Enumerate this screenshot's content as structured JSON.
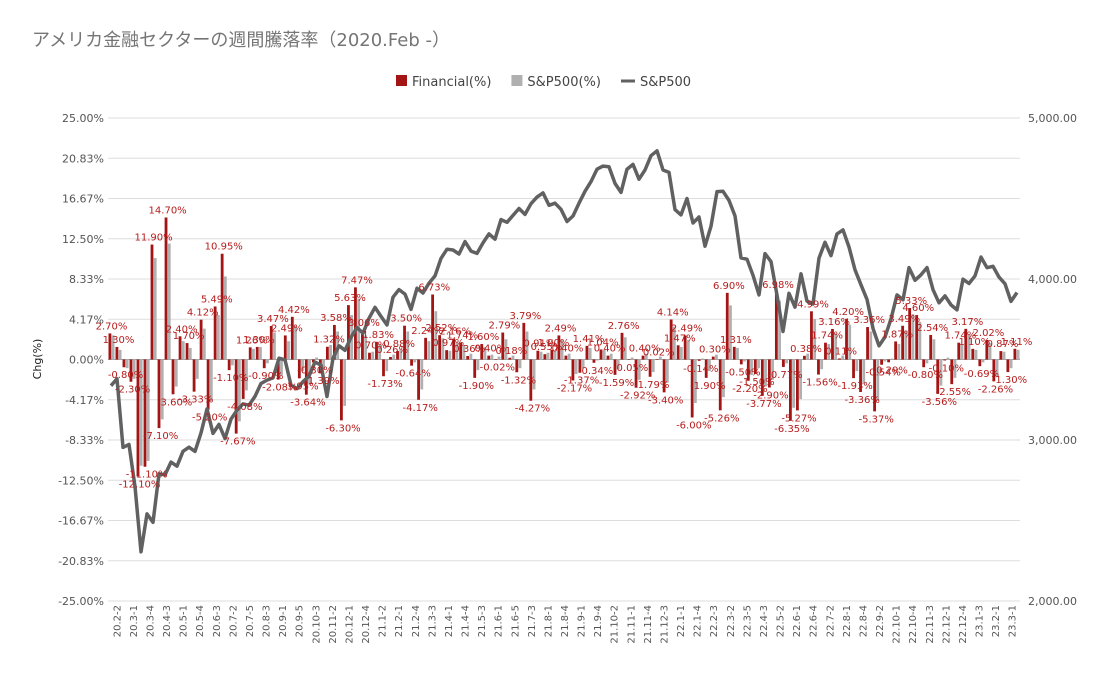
{
  "chart_data": {
    "type": "bar",
    "title": "アメリカ金融セクターの週間騰落率（2020.Feb -）",
    "ylabel": "Chg(%)",
    "ylim_left": [
      -25,
      25
    ],
    "ylim_right": [
      2000,
      5000
    ],
    "left_ticks": [
      "25.00%",
      "20.83%",
      "16.67%",
      "12.50%",
      "8.33%",
      "4.17%",
      "0.00%",
      "-4.17%",
      "-8.33%",
      "-12.50%",
      "-16.67%",
      "-20.83%",
      "-25.00%"
    ],
    "right_ticks": [
      "5,000.00",
      "4,000.00",
      "3,000.00",
      "2,000.00"
    ],
    "legend": {
      "position": "top",
      "items": [
        {
          "name": "Financial(%)",
          "color": "#a31515",
          "shape": "square"
        },
        {
          "name": "S&P500(%)",
          "color": "#b0b0b0",
          "shape": "square"
        },
        {
          "name": "S&P500",
          "color": "#616161",
          "shape": "line"
        }
      ]
    },
    "categories": [
      "20.2-2",
      "20.3-1",
      "20.3-4",
      "20.4-3",
      "20.5-1",
      "20.5-4",
      "20.6-3",
      "20.7-2",
      "20.7-5",
      "20.8-3",
      "20.9-1",
      "20.9-5",
      "20.10-3",
      "20.11-2",
      "20.12-1",
      "20.12-4",
      "21.1-2",
      "21.2-1",
      "21.2-4",
      "21.3-3",
      "21.4-1",
      "21.4-4",
      "21.5-3",
      "21.6-1",
      "21.6-5",
      "21.7-3",
      "21.8-1",
      "21.8-4",
      "21.9-1",
      "21.9-4",
      "21.10-2",
      "21.11-1",
      "21.11-4",
      "21.12-3",
      "22.1-1",
      "22.1-4",
      "22.2-3",
      "22.3-2",
      "22.3-5",
      "22.4-3",
      "22.5-2",
      "22.6-1",
      "22.6-4",
      "22.7-2",
      "22.8-1",
      "22.8-4",
      "22.9-2",
      "22.10-1",
      "22.10-4",
      "22.11-3",
      "22.12-1",
      "22.12-4",
      "23.1-3",
      "23.2-1",
      "23.3-1"
    ],
    "financial": [
      2.7,
      1.3,
      -0.8,
      -2.3,
      -12.1,
      -11.1,
      11.9,
      -7.1,
      14.7,
      -3.6,
      2.4,
      1.7,
      -3.33,
      4.12,
      -5.2,
      5.49,
      10.95,
      -1.1,
      -7.67,
      -4.08,
      1.26,
      1.3,
      -0.9,
      3.47,
      -2.08,
      2.49,
      4.42,
      -1.95,
      -3.64,
      -0.3,
      -1.39,
      1.32,
      3.58,
      -6.3,
      5.63,
      7.47,
      3.06,
      0.7,
      1.83,
      -1.73,
      0.26,
      0.88,
      3.5,
      -0.64,
      -4.17,
      2.24,
      6.73,
      2.52,
      0.97,
      2.16,
      1.74,
      0.36,
      -1.9,
      1.6,
      0.4,
      -0.02,
      2.79,
      0.18,
      -1.32,
      3.79,
      -4.27,
      0.91,
      0.55,
      1.0,
      2.49,
      0.4,
      -2.17,
      -1.37,
      1.41,
      -0.34,
      1.04,
      0.4,
      -1.59,
      2.76,
      -0.05,
      -2.92,
      0.4,
      -1.79,
      0.02,
      -3.4,
      4.14,
      1.47,
      2.49,
      -6.0,
      -0.14,
      -1.9,
      0.3,
      -5.26,
      6.9,
      1.31,
      -0.5,
      -2.2,
      -1.5,
      -3.77,
      -2.9,
      6.98,
      -0.77,
      -6.35,
      -5.27,
      0.38,
      4.99,
      -1.56,
      1.74,
      3.16,
      0.11,
      4.2,
      -1.93,
      -3.36,
      3.36,
      -5.37,
      -0.54,
      -0.29,
      1.87,
      3.49,
      5.33,
      4.6,
      -0.8,
      2.54,
      -3.56,
      -0.1,
      -2.55,
      1.74,
      3.17,
      1.1,
      -0.69,
      2.02,
      -2.26,
      0.87,
      -1.3,
      1.11
    ],
    "financial_labels": [
      "2.70%",
      "1.30%",
      "-0.80%",
      "-2.30%",
      "-12.10%",
      "-11.10%",
      "11.90%",
      "-7.10%",
      "14.70%",
      "-3.60%",
      "2.40%",
      "1.70%",
      "-3.33%",
      "4.12%",
      "-5.20%",
      "5.49%",
      "10.95%",
      "-1.10%",
      "-7.67%",
      "-4.08%",
      "1.26%",
      "1.30%",
      "-0.90%",
      "3.47%",
      "-2.08%",
      "2.49%",
      "4.42%",
      "-1.95%",
      "-3.64%",
      "-0.30%",
      "-1.39%",
      "1.32%",
      "3.58%",
      "-6.30%",
      "5.63%",
      "7.47%",
      "3.06%",
      "0.70%",
      "1.83%",
      "-1.73%",
      "0.26%",
      "0.88%",
      "3.50%",
      "-0.64%",
      "-4.17%",
      "2.24%",
      "6.73%",
      "2.52%",
      "0.97%",
      "2.16%",
      "1.74%",
      "0.36%",
      "-1.90%",
      "1.60%",
      "0.40%",
      "-0.02%",
      "2.79%",
      "0.18%",
      "-1.32%",
      "3.79%",
      "-4.27%",
      "0.91%",
      "0.55%",
      "1.00%",
      "2.49%",
      "0.40%",
      "-2.17%",
      "-1.37%",
      "1.41%",
      "-0.34%",
      "1.04%",
      "0.40%",
      "-1.59%",
      "2.76%",
      "-0.05%",
      "-2.92%",
      "0.40%",
      "-1.79%",
      "0.02%",
      "-3.40%",
      "4.14%",
      "1.47%",
      "2.49%",
      "-6.00%",
      "-0.14%",
      "-1.90%",
      "0.30%",
      "-5.26%",
      "6.90%",
      "1.31%",
      "-0.50%",
      "-2.20%",
      "-1.50%",
      "-3.77%",
      "-2.90%",
      "6.98%",
      "-0.77%",
      "-6.35%",
      "-5.27%",
      "0.38%",
      "4.99%",
      "-1.56%",
      "1.74%",
      "3.16%",
      "0.11%",
      "4.20%",
      "-1.93%",
      "-3.36%",
      "3.36%",
      "-5.37%",
      "-0.54%",
      "-0.29%",
      "1.87%",
      "3.49%",
      "5.33%",
      "4.60%",
      "-0.80%",
      "2.54%",
      "-3.56%",
      "-0.10%",
      "-2.55%",
      "1.74%",
      "3.17%",
      "1.10%",
      "-0.69%",
      "2.02%",
      "-2.26%",
      "0.87%",
      "-1.30%",
      "1.11%"
    ],
    "sp500_pct": [
      2.5,
      1.0,
      -0.9,
      -2.0,
      -11.0,
      -10.5,
      10.5,
      -6.2,
      12.0,
      -2.8,
      1.9,
      1.2,
      -2.0,
      3.2,
      -4.3,
      4.6,
      8.6,
      -0.6,
      -6.4,
      -3.2,
      1.1,
      1.3,
      -0.4,
      2.8,
      -1.6,
      1.9,
      3.5,
      -1.2,
      -2.6,
      0.2,
      -1.0,
      1.5,
      2.9,
      -4.8,
      4.6,
      6.3,
      2.5,
      0.8,
      1.6,
      -1.2,
      0.5,
      1.1,
      2.9,
      -0.3,
      -3.1,
      1.9,
      5.0,
      2.2,
      0.9,
      1.8,
      1.5,
      0.6,
      -1.1,
      1.3,
      0.5,
      0.3,
      2.1,
      0.4,
      -0.9,
      2.9,
      -3.1,
      0.8,
      0.7,
      0.9,
      2.0,
      0.6,
      -1.5,
      -0.9,
      1.2,
      -0.1,
      1.0,
      0.6,
      -1.0,
      2.3,
      0.2,
      -2.1,
      0.6,
      -1.3,
      0.3,
      -2.4,
      3.4,
      1.3,
      2.0,
      -4.5,
      0.1,
      -1.2,
      0.5,
      -3.9,
      5.6,
      1.2,
      -0.2,
      -1.6,
      -0.9,
      -2.8,
      -2.1,
      6.1,
      -0.4,
      -5.0,
      -4.1,
      0.6,
      4.2,
      -1.0,
      1.6,
      2.7,
      0.4,
      3.6,
      -1.2,
      -2.5,
      2.9,
      -4.3,
      -0.2,
      0.1,
      1.6,
      3.0,
      4.7,
      3.9,
      -0.4,
      2.1,
      -2.7,
      0.2,
      -1.9,
      1.5,
      2.6,
      1.0,
      -0.3,
      1.7,
      -1.7,
      0.8,
      -0.9,
      1.0
    ],
    "sp500_level": [
      3337,
      3380,
      2954,
      2972,
      2711,
      2305,
      2541,
      2489,
      2790,
      2783,
      2863,
      2837,
      2930,
      2955,
      2929,
      3044,
      3193,
      3041,
      3097,
      3009,
      3130,
      3185,
      3224,
      3216,
      3271,
      3351,
      3372,
      3386,
      3508,
      3498,
      3341,
      3319,
      3362,
      3397,
      3484,
      3465,
      3270,
      3509,
      3585,
      3557,
      3638,
      3699,
      3663,
      3756,
      3824,
      3768,
      3714,
      3887,
      3934,
      3906,
      3811,
      3943,
      3913,
      3974,
      4019,
      4128,
      4185,
      4180,
      4155,
      4232,
      4173,
      4159,
      4224,
      4280,
      4247,
      4369,
      4352,
      4395,
      4438,
      4401,
      4468,
      4509,
      4535,
      4458,
      4471,
      4433,
      4357,
      4391,
      4471,
      4545,
      4605,
      4682,
      4701,
      4697,
      4594,
      4538,
      4682,
      4712,
      4620,
      4677,
      4766,
      4796,
      4677,
      4662,
      4431,
      4398,
      4500,
      4348,
      4385,
      4204,
      4328,
      4543,
      4545,
      4488,
      4392,
      4131,
      4123,
      4023,
      3901,
      4158,
      4108,
      3900,
      3674,
      3911,
      3825,
      4032,
      3863,
      3845,
      4130,
      4228,
      4145,
      4280,
      4305,
      4199,
      4057,
      3964,
      3873,
      3693,
      3585,
      3640,
      3752,
      3901,
      3871,
      4071,
      3992,
      4026,
      4071,
      3934,
      3852,
      3895,
      3839,
      3808,
      3999,
      3972,
      4019,
      4136,
      4070,
      4079,
      4012,
      3970,
      3861,
      3916
    ],
    "axis_label_right": "",
    "xlabel": ""
  }
}
